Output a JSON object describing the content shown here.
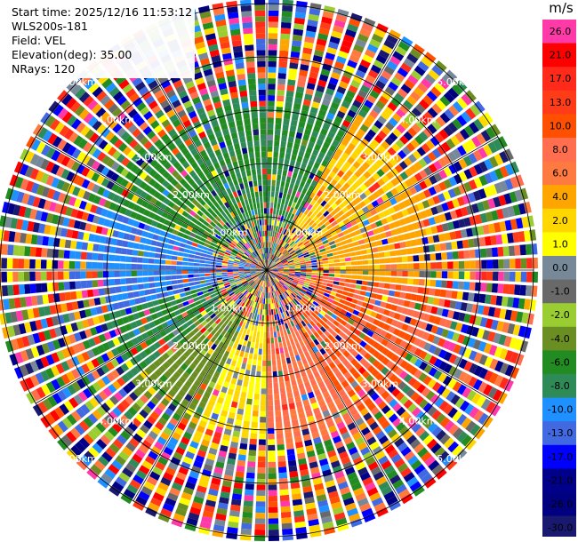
{
  "header": {
    "start_time": "Start time: 2025/12/16 11:53:12",
    "instrument": "WLS200s-181",
    "field": "Field: VEL",
    "elevation": "Elevation(deg): 35.00",
    "nrays": "NRays: 120"
  },
  "chart_data": {
    "type": "heatmap",
    "projection": "polar-ppi",
    "field": "VEL",
    "units": "m/s",
    "elevation_deg": 35.0,
    "n_rays": 120,
    "range_rings": [
      "1.00km",
      "2.00km",
      "3.00km",
      "4.00km",
      "5.00km"
    ],
    "colorbar": {
      "unit": "m/s",
      "levels": [
        "26.0",
        "21.0",
        "17.0",
        "13.0",
        "10.0",
        "8.0",
        "6.0",
        "4.0",
        "2.0",
        "1.0",
        "0.0",
        "-1.0",
        "-2.0",
        "-4.0",
        "-6.0",
        "-8.0",
        "-10.0",
        "-13.0",
        "-17.0",
        "-21.0",
        "-26.0",
        "-30.0"
      ],
      "level_values": [
        26,
        21,
        17,
        13,
        10,
        8,
        6,
        4,
        2,
        1,
        0,
        -1,
        -2,
        -4,
        -6,
        -8,
        -10,
        -13,
        -17,
        -21,
        -26,
        -30
      ],
      "colors": [
        "#ff3aa8",
        "#ff0000",
        "#ff2a1a",
        "#ff3b18",
        "#ff4f00",
        "#ff6e4e",
        "#ff7a40",
        "#ffa500",
        "#ffd700",
        "#ffff00",
        "#778899",
        "#696969",
        "#9acd32",
        "#6b8e23",
        "#228b22",
        "#2e8b57",
        "#1e90ff",
        "#4169e1",
        "#0000ff",
        "#00008b",
        "#000080",
        "#191970"
      ]
    },
    "sectors": [
      {
        "azimuth_deg": [
          0,
          30
        ],
        "velocity_ms": -6
      },
      {
        "azimuth_deg": [
          30,
          60
        ],
        "velocity_ms": 4
      },
      {
        "azimuth_deg": [
          60,
          95
        ],
        "velocity_ms": 5
      },
      {
        "azimuth_deg": [
          95,
          150
        ],
        "velocity_ms": 10
      },
      {
        "azimuth_deg": [
          150,
          180
        ],
        "velocity_ms": 8
      },
      {
        "azimuth_deg": [
          180,
          205
        ],
        "velocity_ms": 2
      },
      {
        "azimuth_deg": [
          205,
          230
        ],
        "velocity_ms": -3
      },
      {
        "azimuth_deg": [
          230,
          255
        ],
        "velocity_ms": -6
      },
      {
        "azimuth_deg": [
          255,
          290
        ],
        "velocity_ms": -10
      },
      {
        "azimuth_deg": [
          290,
          320
        ],
        "velocity_ms": -5
      },
      {
        "azimuth_deg": [
          320,
          360
        ],
        "velocity_ms": -6
      }
    ],
    "noise_inner_range_km": 1.0,
    "noise_outer_range_km": 3.0
  }
}
